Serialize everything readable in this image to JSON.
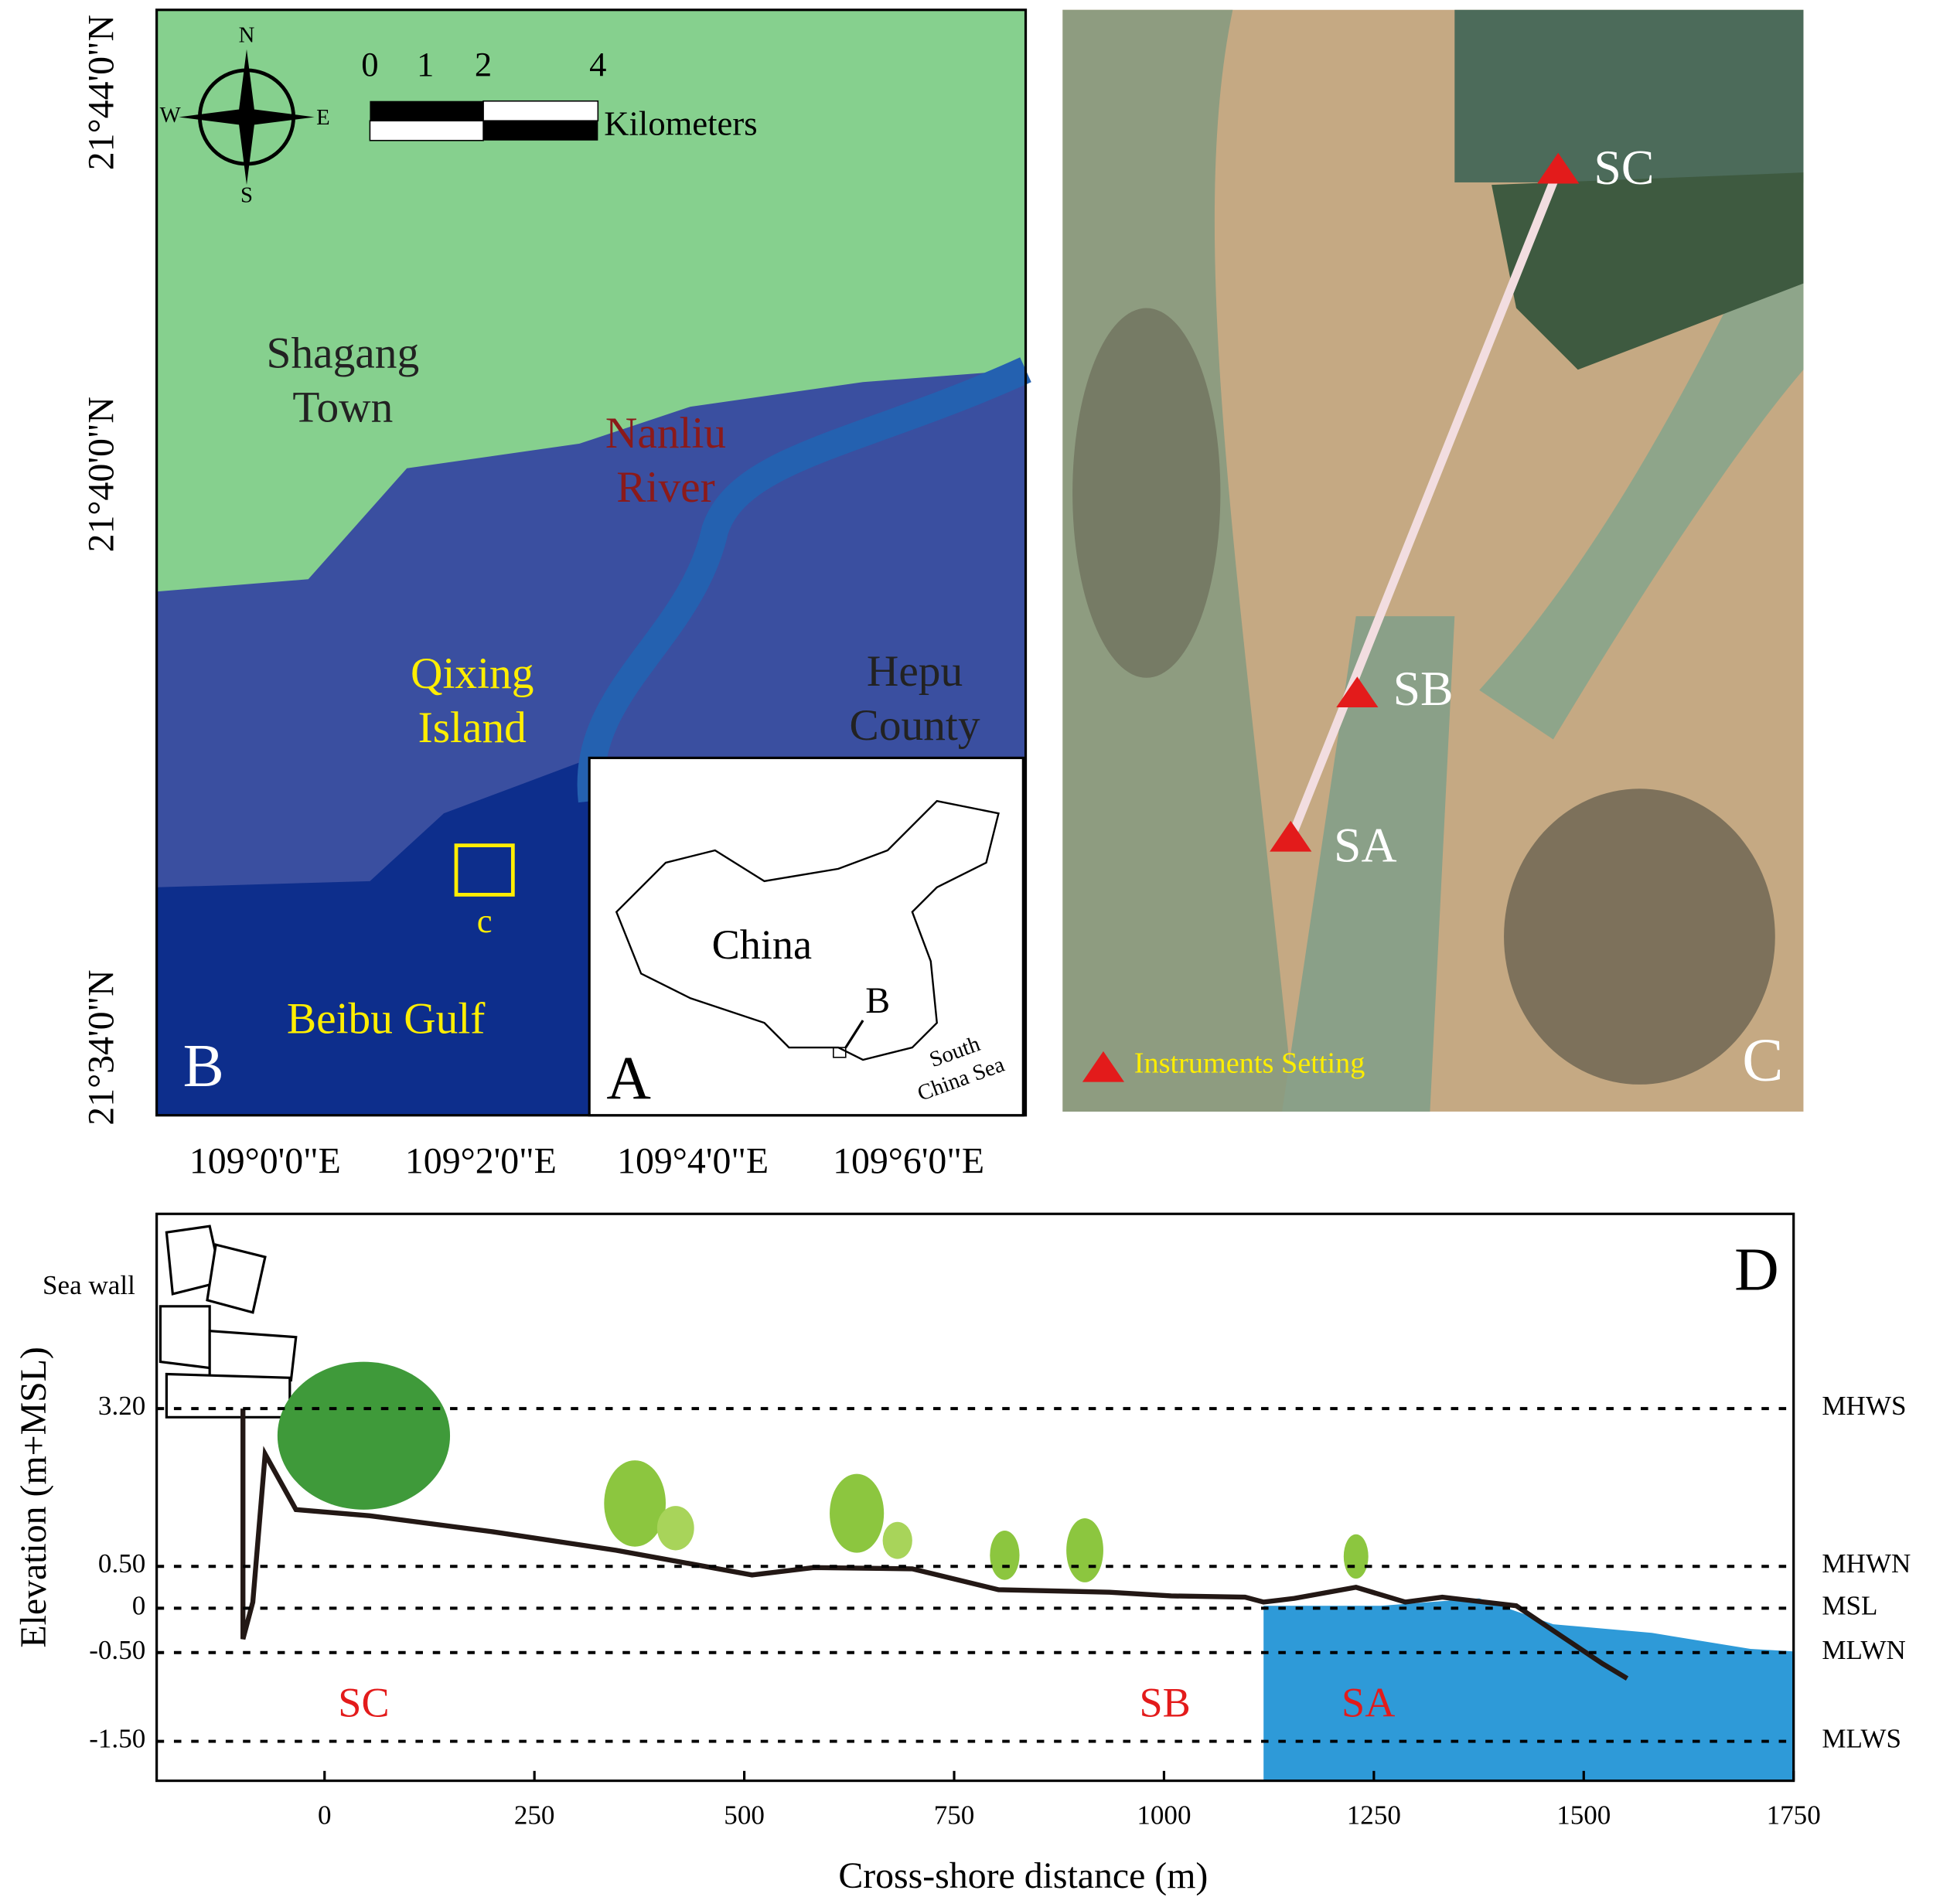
{
  "panel_b": {
    "label": "B",
    "latitudes": [
      "21°44'0\"N",
      "21°40'0\"N",
      "21°34'0\"N"
    ],
    "longitudes": [
      "109°0'0\"E",
      "109°2'0\"E",
      "109°4'0\"E",
      "109°6'0\"E"
    ],
    "compass": [
      "N",
      "S",
      "W",
      "E"
    ],
    "scale_bar": {
      "ticks": [
        "0",
        "1",
        "2",
        "4"
      ],
      "unit": "Kilometers"
    },
    "places": [
      {
        "lines": [
          "Shagang",
          "Town"
        ]
      },
      {
        "lines": [
          "Nanliu",
          "River"
        ]
      },
      {
        "lines": [
          "Qixing",
          "Island"
        ]
      },
      {
        "lines": [
          "Hepu",
          "County"
        ]
      },
      {
        "lines": [
          "Beibu Gulf"
        ]
      }
    ],
    "box_label": "c"
  },
  "panel_a": {
    "label": "A",
    "country": "China",
    "pointer": "B",
    "sea": [
      "South",
      "China Sea"
    ]
  },
  "panel_c": {
    "label": "C",
    "stations": [
      "SA",
      "SB",
      "SC"
    ],
    "legend": "Instruments Setting"
  },
  "panel_d": {
    "label": "D",
    "sea_wall": "Sea wall",
    "y_label": "Elevation (m+MSL)",
    "x_label": "Cross-shore distance (m)",
    "xlim": [
      -200,
      1750
    ],
    "xticks": [
      0,
      250,
      500,
      750,
      1000,
      1250,
      1500,
      1750
    ],
    "levels": [
      {
        "tick": "3.20",
        "name": "MHWS"
      },
      {
        "tick": "0.50",
        "name": "MHWN"
      },
      {
        "tick": "0",
        "name": "MSL"
      },
      {
        "tick": "-0.50",
        "name": "MLWN"
      },
      {
        "tick": "-1.50",
        "name": "MLWS"
      }
    ],
    "zones": [
      "SC",
      "SB",
      "SA"
    ]
  }
}
